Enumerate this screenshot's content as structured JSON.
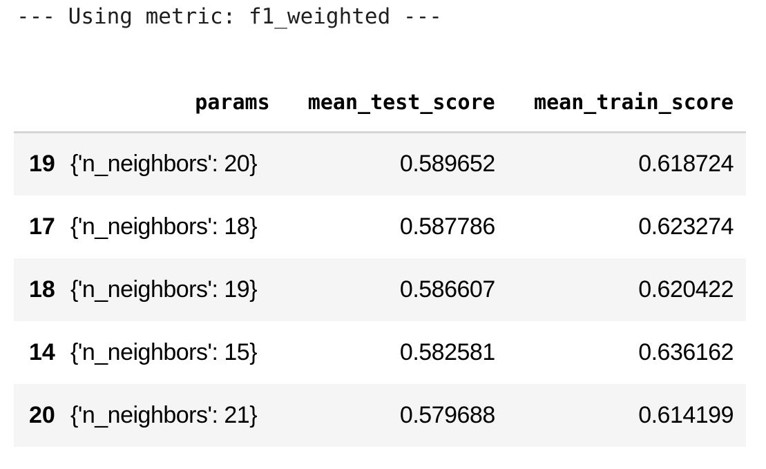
{
  "output": {
    "metric_line": "--- Using metric: f1_weighted ---"
  },
  "table": {
    "columns": {
      "index": "",
      "params": "params",
      "mean_test_score": "mean_test_score",
      "mean_train_score": "mean_train_score"
    },
    "rows": [
      {
        "index": "19",
        "params": "{'n_neighbors': 20}",
        "mean_test_score": "0.589652",
        "mean_train_score": "0.618724"
      },
      {
        "index": "17",
        "params": "{'n_neighbors': 18}",
        "mean_test_score": "0.587786",
        "mean_train_score": "0.623274"
      },
      {
        "index": "18",
        "params": "{'n_neighbors': 19}",
        "mean_test_score": "0.586607",
        "mean_train_score": "0.620422"
      },
      {
        "index": "14",
        "params": "{'n_neighbors': 15}",
        "mean_test_score": "0.582581",
        "mean_train_score": "0.636162"
      },
      {
        "index": "20",
        "params": "{'n_neighbors': 21}",
        "mean_test_score": "0.579688",
        "mean_train_score": "0.614199"
      }
    ]
  },
  "colors": {
    "striped_row_background": "#f5f5f5",
    "header_border": "#d4d4d4",
    "text": "#000000"
  }
}
